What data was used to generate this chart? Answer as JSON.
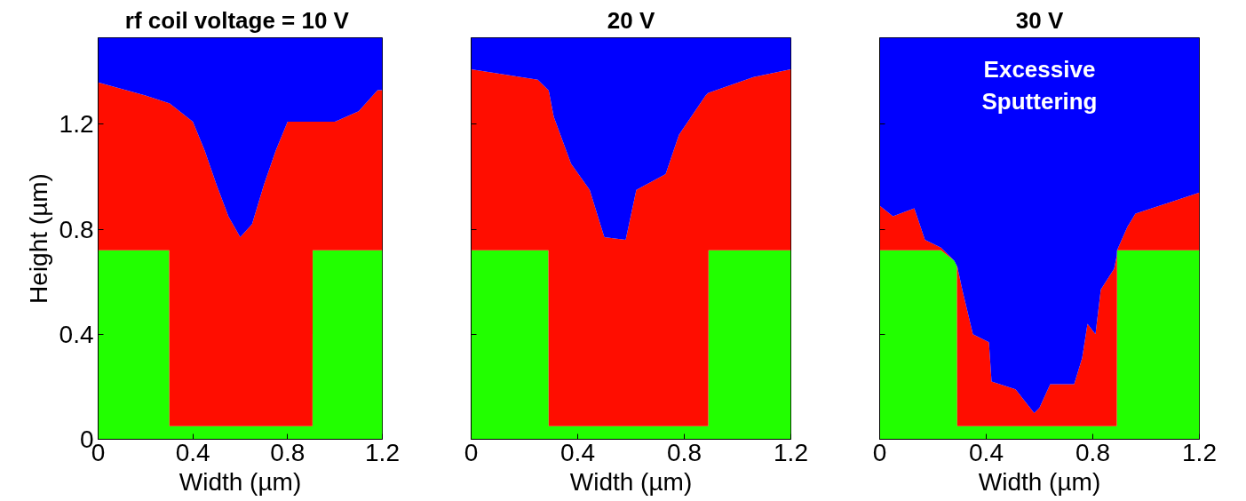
{
  "chart_data": [
    {
      "type": "area",
      "stacked": true,
      "title": "rf coil voltage  = 10 V",
      "xlabel": "Width (µm)",
      "ylabel": "Height (µm)",
      "xlim": [
        0,
        1.2
      ],
      "ylim": [
        0,
        1.53
      ],
      "xticks": [
        0,
        0.4,
        0.8,
        1.2
      ],
      "yticks": [
        0,
        0.4,
        0.8,
        1.2
      ],
      "grid": false,
      "x": [
        0,
        0.2,
        0.3,
        0.301,
        0.33,
        0.4,
        0.45,
        0.5,
        0.55,
        0.6,
        0.65,
        0.7,
        0.75,
        0.8,
        0.9,
        0.905,
        0.906,
        1.0,
        1.1,
        1.18,
        1.2
      ],
      "series": [
        {
          "color": "#22ff00",
          "values": [
            0.72,
            0.72,
            0.72,
            0.05,
            0.05,
            0.05,
            0.05,
            0.05,
            0.05,
            0.05,
            0.05,
            0.05,
            0.05,
            0.05,
            0.05,
            0.05,
            0.72,
            0.72,
            0.72,
            0.72,
            0.72
          ]
        },
        {
          "color": "#ff0d00",
          "values": [
            0.64,
            0.59,
            0.56,
            1.23,
            1.21,
            1.16,
            1.05,
            0.92,
            0.8,
            0.72,
            0.77,
            0.92,
            1.05,
            1.16,
            1.16,
            1.16,
            0.49,
            0.49,
            0.53,
            0.61,
            0.61
          ]
        },
        {
          "color": "#0000ff",
          "values": [
            0.17,
            0.22,
            0.25,
            0.25,
            0.27,
            0.32,
            0.43,
            0.56,
            0.68,
            0.76,
            0.71,
            0.56,
            0.43,
            0.32,
            0.32,
            0.32,
            0.32,
            0.32,
            0.28,
            0.2,
            0.2
          ]
        }
      ]
    },
    {
      "type": "area",
      "stacked": true,
      "title": "20 V",
      "xlabel": "Width (µm)",
      "xlim": [
        0,
        1.2
      ],
      "ylim": [
        0,
        1.53
      ],
      "xticks": [
        0,
        0.4,
        0.8,
        1.2
      ],
      "yticks": [
        0,
        0.4,
        0.8,
        1.2
      ],
      "tick_labels": "x",
      "grid": false,
      "x": [
        0,
        0.25,
        0.29,
        0.291,
        0.31,
        0.375,
        0.445,
        0.5,
        0.58,
        0.62,
        0.73,
        0.78,
        0.88,
        0.89,
        0.891,
        1.06,
        1.2
      ],
      "series": [
        {
          "color": "#22ff00",
          "values": [
            0.72,
            0.72,
            0.72,
            0.05,
            0.05,
            0.05,
            0.05,
            0.05,
            0.05,
            0.05,
            0.05,
            0.05,
            0.05,
            0.05,
            0.72,
            0.72,
            0.72
          ]
        },
        {
          "color": "#ff0d00",
          "values": [
            0.69,
            0.65,
            0.61,
            1.28,
            1.18,
            1.0,
            0.9,
            0.72,
            0.71,
            0.9,
            0.96,
            1.11,
            1.26,
            1.27,
            0.6,
            0.66,
            0.69
          ]
        },
        {
          "color": "#0000ff",
          "values": [
            0.12,
            0.16,
            0.2,
            0.2,
            0.3,
            0.48,
            0.58,
            0.76,
            0.77,
            0.58,
            0.52,
            0.37,
            0.22,
            0.21,
            0.21,
            0.15,
            0.12
          ]
        }
      ]
    },
    {
      "type": "area",
      "stacked": true,
      "title": "30 V",
      "xlabel": "Width (µm)",
      "xlim": [
        0,
        1.2
      ],
      "ylim": [
        0,
        1.53
      ],
      "xticks": [
        0,
        0.4,
        0.8,
        1.2
      ],
      "yticks": [
        0,
        0.4,
        0.8,
        1.2
      ],
      "tick_labels": "x",
      "grid": false,
      "annotations": [
        "Excessive\nSputtering"
      ],
      "x": [
        0,
        0.05,
        0.13,
        0.17,
        0.23,
        0.28,
        0.29,
        0.291,
        0.31,
        0.35,
        0.41,
        0.42,
        0.51,
        0.58,
        0.6,
        0.64,
        0.73,
        0.76,
        0.78,
        0.81,
        0.83,
        0.88,
        0.89,
        0.891,
        0.93,
        0.96,
        1.11,
        1.2
      ],
      "series": [
        {
          "color": "#22ff00",
          "values": [
            0.72,
            0.72,
            0.72,
            0.72,
            0.72,
            0.68,
            0.66,
            0.05,
            0.05,
            0.05,
            0.05,
            0.05,
            0.05,
            0.05,
            0.05,
            0.05,
            0.05,
            0.05,
            0.05,
            0.05,
            0.05,
            0.05,
            0.05,
            0.72,
            0.72,
            0.72,
            0.72,
            0.72
          ]
        },
        {
          "color": "#ff0d00",
          "values": [
            0.17,
            0.13,
            0.16,
            0.04,
            0.01,
            0,
            0,
            0.61,
            0.52,
            0.35,
            0.32,
            0.17,
            0.14,
            0.05,
            0.07,
            0.16,
            0.16,
            0.26,
            0.39,
            0.35,
            0.52,
            0.6,
            0.65,
            0,
            0.09,
            0.14,
            0.19,
            0.22
          ]
        },
        {
          "color": "#0000ff",
          "values": [
            0.64,
            0.68,
            0.65,
            0.77,
            0.8,
            0.85,
            0.87,
            0.87,
            0.96,
            1.13,
            1.16,
            1.31,
            1.34,
            1.43,
            1.41,
            1.32,
            1.32,
            1.22,
            1.09,
            1.13,
            0.96,
            0.88,
            0.83,
            0.81,
            0.72,
            0.67,
            0.62,
            0.59
          ]
        }
      ]
    }
  ]
}
